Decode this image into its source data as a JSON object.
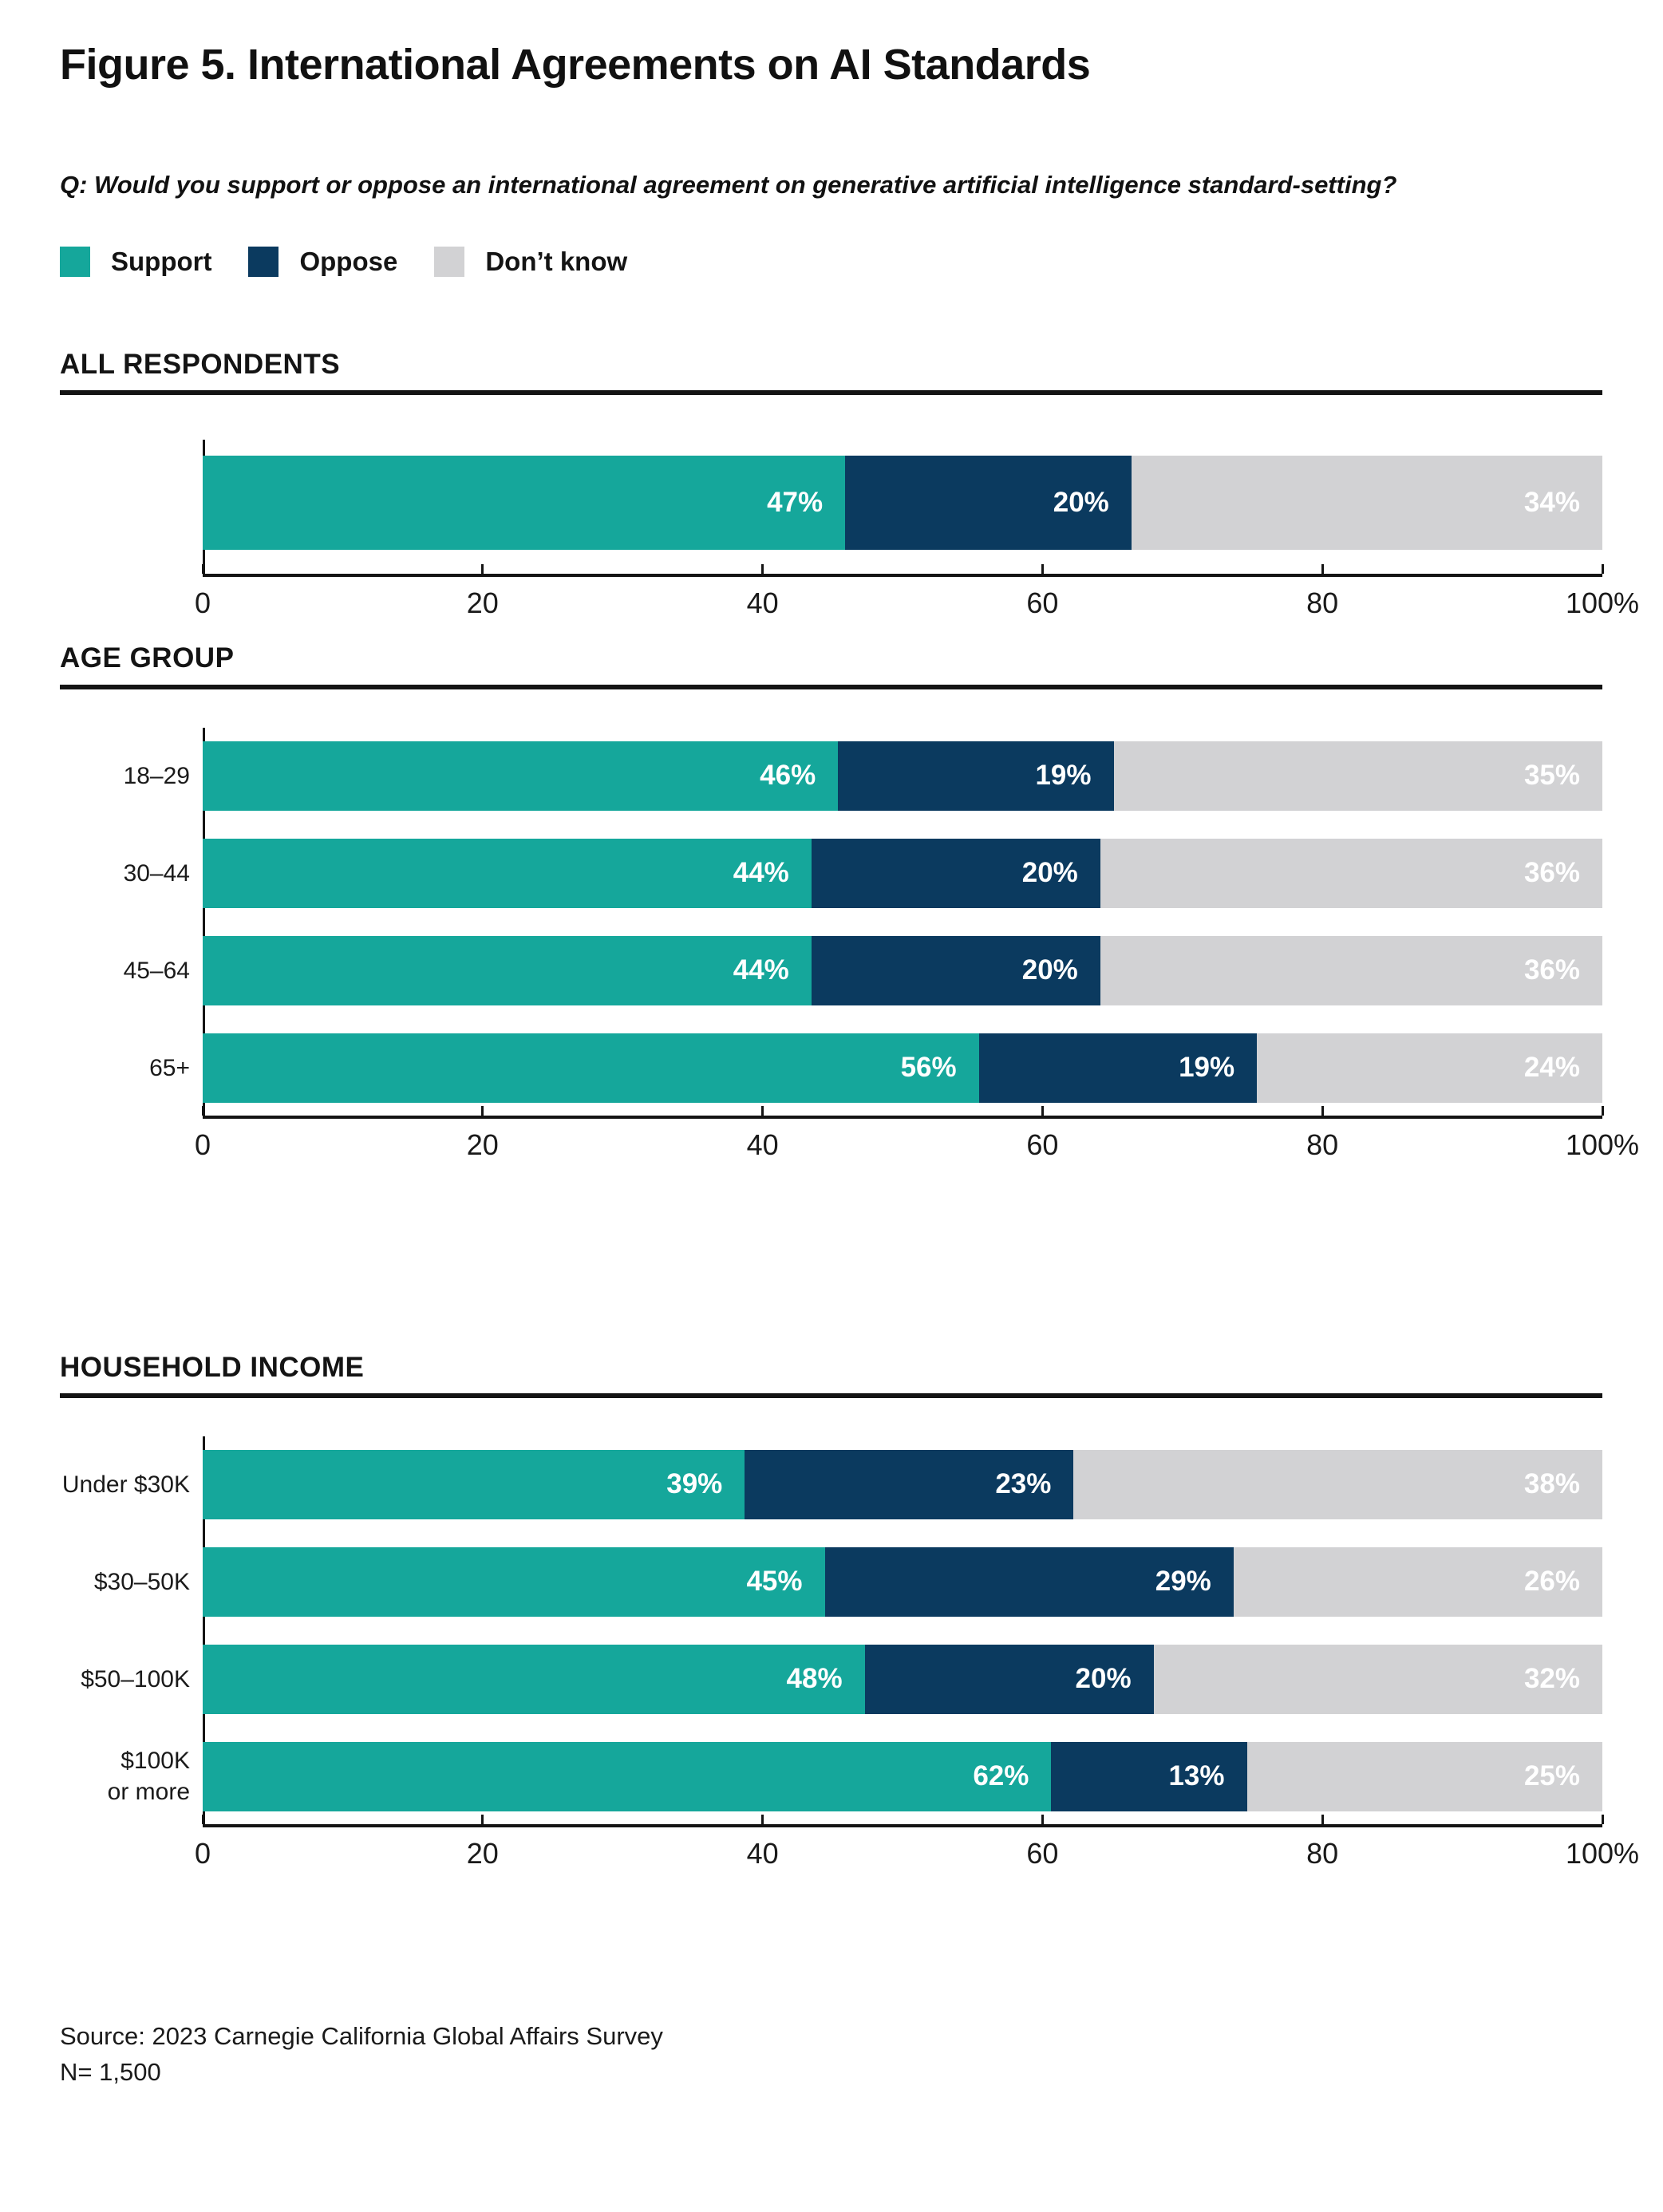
{
  "header": {
    "title": "Figure 5. International Agreements on AI Standards",
    "question": "Q: Would you support or oppose an international agreement on generative artificial intelligence standard-setting?"
  },
  "legend": [
    {
      "key": "support",
      "label": "Support",
      "color": "#15A79B"
    },
    {
      "key": "oppose",
      "label": "Oppose",
      "color": "#0B3A5F"
    },
    {
      "key": "dont-know",
      "label": "Don’t know",
      "color": "#D2D2D4"
    }
  ],
  "colors": {
    "support": "#15A79B",
    "oppose": "#0B3A5F",
    "dont_know": "#D2D2D4",
    "axis": "#141414"
  },
  "axis": {
    "tick_values": [
      0,
      20,
      40,
      60,
      80,
      100
    ],
    "tick_labels": [
      "0",
      "20",
      "40",
      "60",
      "80",
      "100%"
    ],
    "xlim": [
      0,
      100
    ]
  },
  "chart_data": [
    {
      "type": "bar",
      "title": "ALL RESPONDENTS",
      "stacked": true,
      "orientation": "horizontal",
      "categories": [
        ""
      ],
      "series": [
        {
          "name": "Support",
          "values": [
            47
          ]
        },
        {
          "name": "Oppose",
          "values": [
            20
          ]
        },
        {
          "name": "Don’t know",
          "values": [
            34
          ]
        }
      ],
      "unit": "%",
      "xlim": [
        0,
        100
      ]
    },
    {
      "type": "bar",
      "title": "AGE GROUP",
      "stacked": true,
      "orientation": "horizontal",
      "categories": [
        "18–29",
        "30–44",
        "45–64",
        "65+"
      ],
      "series": [
        {
          "name": "Support",
          "values": [
            46,
            44,
            44,
            56
          ]
        },
        {
          "name": "Oppose",
          "values": [
            19,
            20,
            20,
            19
          ]
        },
        {
          "name": "Don’t know",
          "values": [
            35,
            36,
            36,
            24
          ]
        }
      ],
      "unit": "%",
      "xlim": [
        0,
        100
      ]
    },
    {
      "type": "bar",
      "title": "HOUSEHOLD INCOME",
      "stacked": true,
      "orientation": "horizontal",
      "categories": [
        "Under $30K",
        "$30–50K",
        "$50–100K",
        "$100K\nor more"
      ],
      "series": [
        {
          "name": "Support",
          "values": [
            39,
            45,
            48,
            62
          ]
        },
        {
          "name": "Oppose",
          "values": [
            23,
            29,
            20,
            13
          ]
        },
        {
          "name": "Don’t know",
          "values": [
            38,
            26,
            32,
            25
          ]
        }
      ],
      "unit": "%",
      "xlim": [
        0,
        100
      ]
    }
  ],
  "footer": {
    "source": "Source: 2023 Carnegie California Global Affairs Survey",
    "n": "N= 1,500"
  }
}
